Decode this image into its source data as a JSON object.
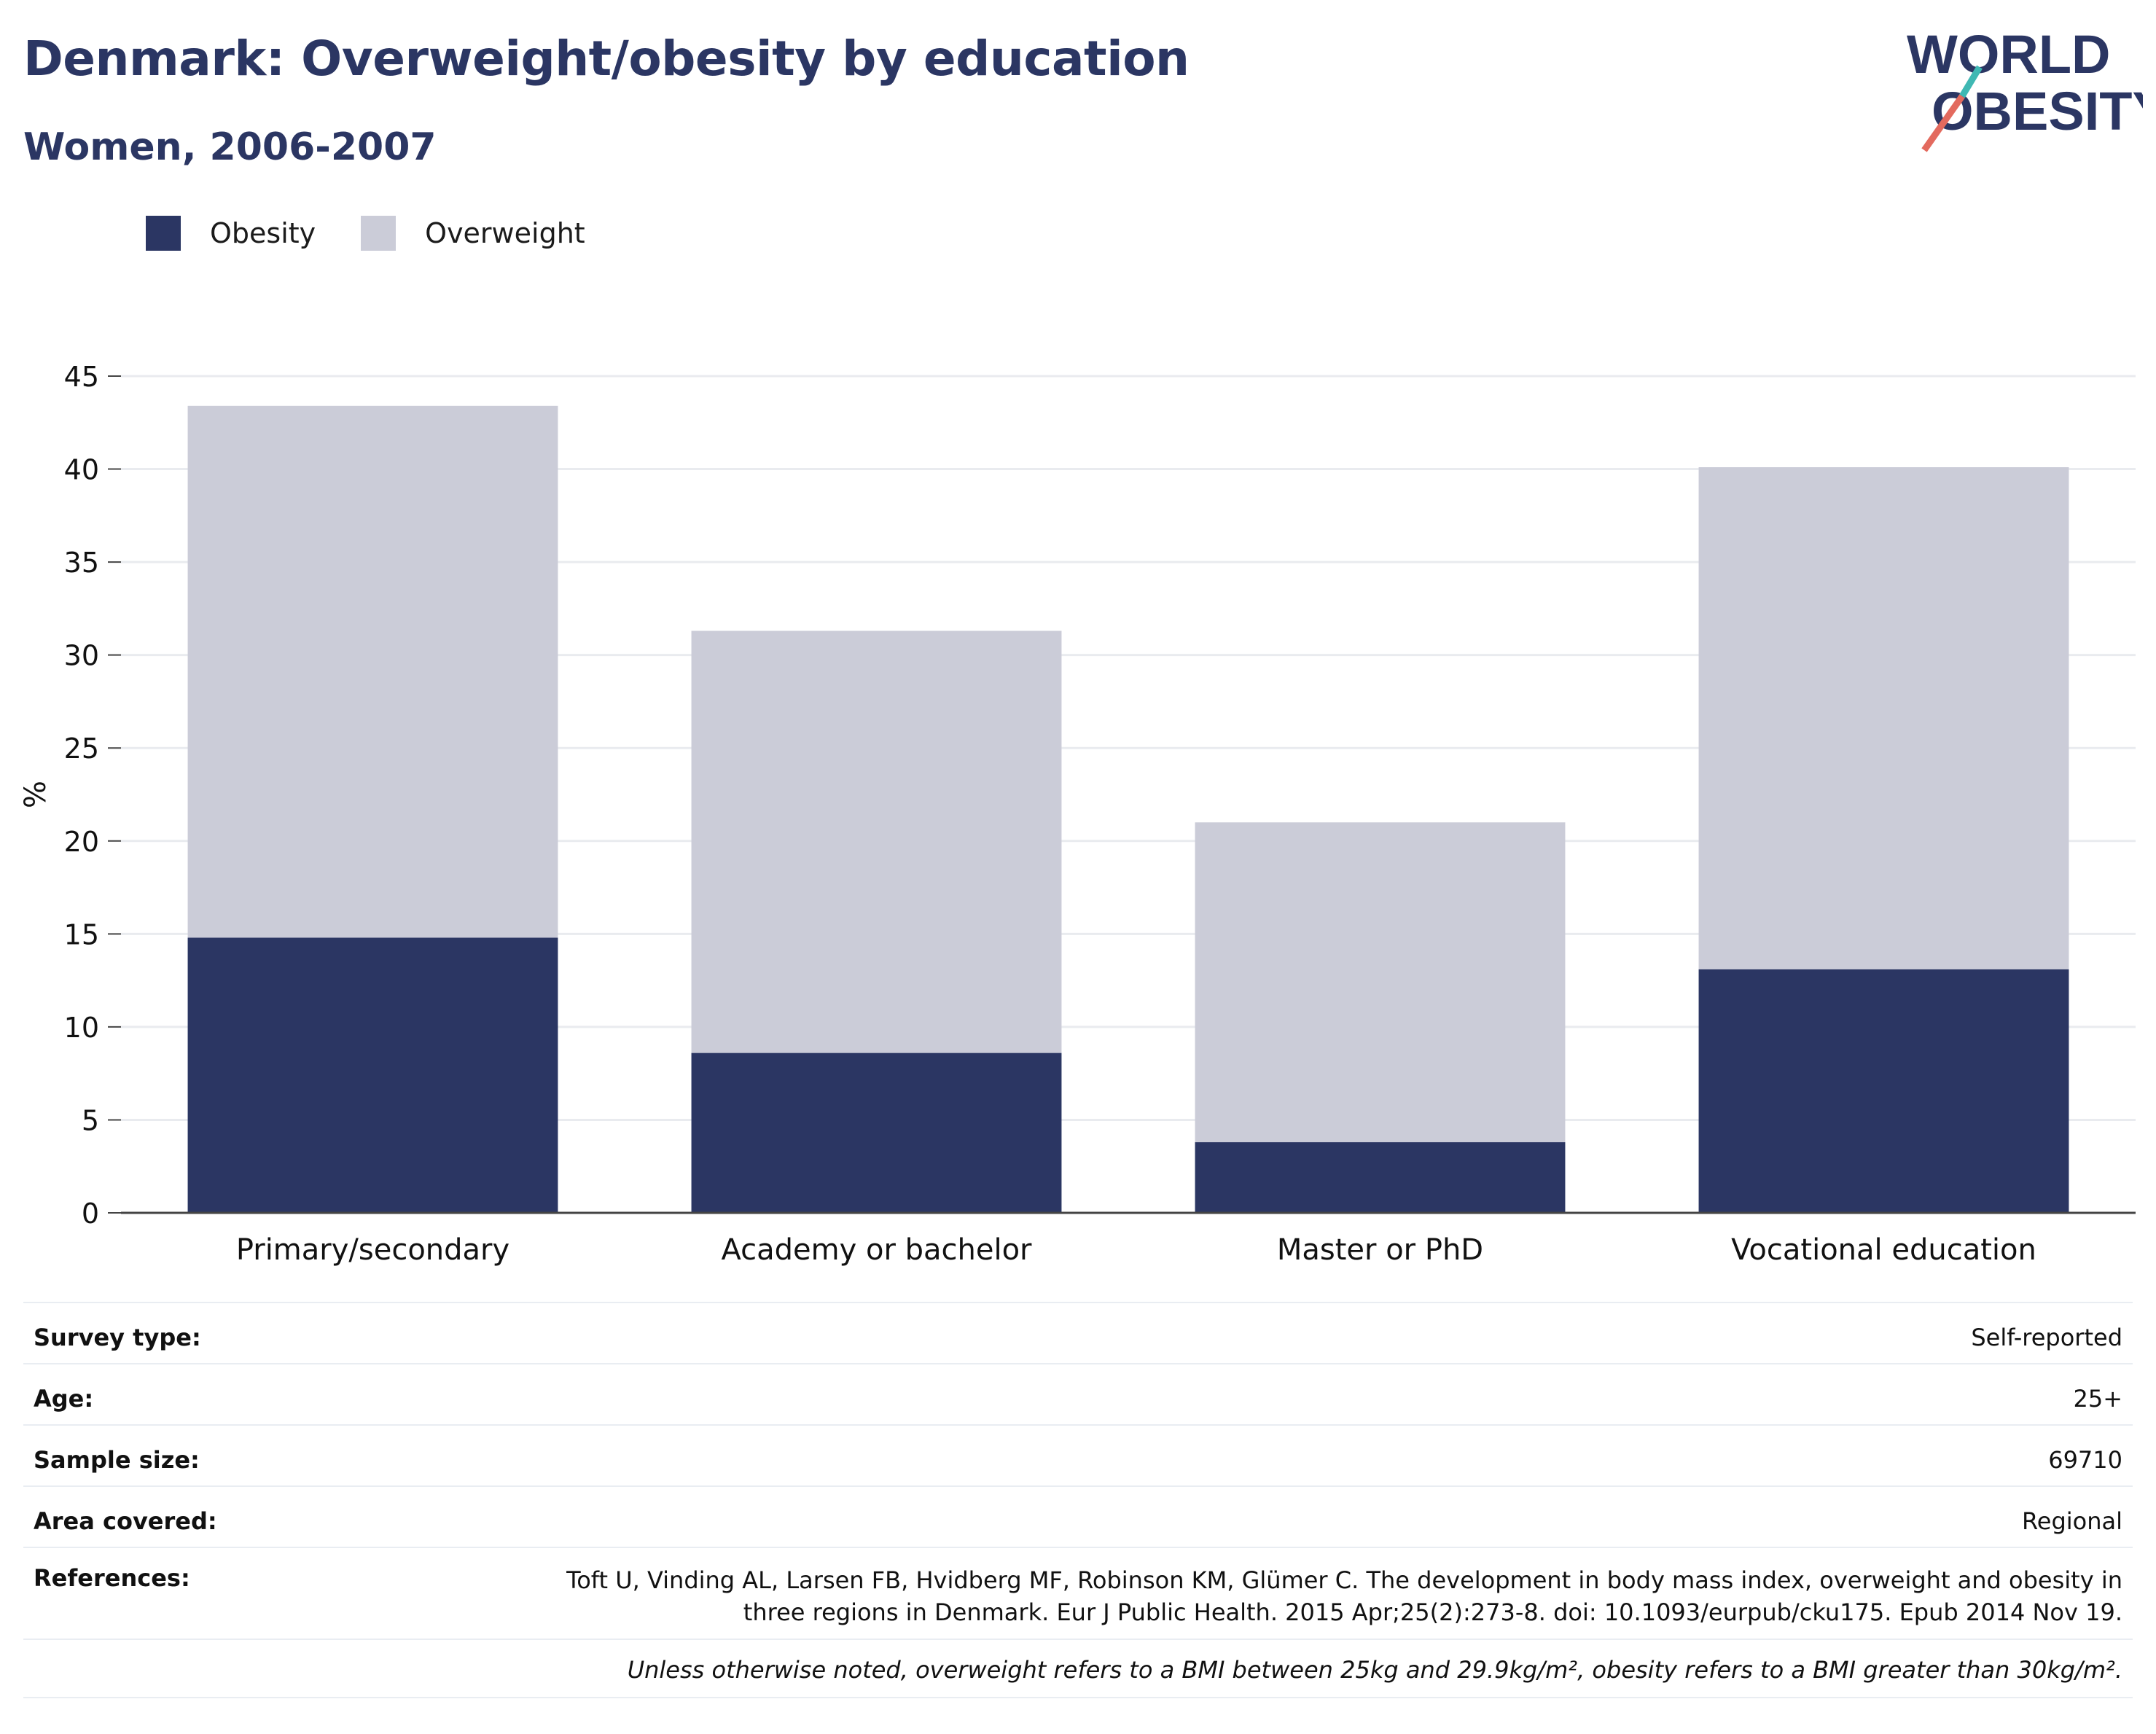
{
  "header": {
    "title": "Denmark: Overweight/obesity by education",
    "subtitle": "Women, 2006-2007"
  },
  "logo": {
    "line1": "WORLD",
    "line2": "OBESITY",
    "colors": {
      "navy": "#2b3663",
      "teal": "#3fb8b3",
      "coral": "#e36a5e"
    }
  },
  "chart_data": {
    "type": "bar",
    "stacked": true,
    "categories": [
      "Primary/secondary",
      "Academy or bachelor",
      "Master or PhD",
      "Vocational education"
    ],
    "series": [
      {
        "name": "Obesity",
        "color": "#2b3663",
        "values": [
          14.8,
          8.6,
          3.8,
          13.1
        ]
      },
      {
        "name": "Overweight",
        "color": "#cbccd8",
        "values": [
          28.6,
          22.7,
          17.2,
          27.0
        ]
      }
    ],
    "ylabel": "%",
    "ylim": [
      0,
      45
    ],
    "yticks": [
      "0",
      "5",
      "10",
      "15",
      "20",
      "25",
      "30",
      "35",
      "40",
      "45"
    ],
    "grid": true,
    "legend_position": "top-left"
  },
  "info": {
    "rows": [
      {
        "label": "Survey type:",
        "value": "Self-reported"
      },
      {
        "label": "Age:",
        "value": "25+"
      },
      {
        "label": "Sample size:",
        "value": "69710"
      },
      {
        "label": "Area covered:",
        "value": "Regional"
      }
    ],
    "references_label": "References:",
    "references_value": "Toft U, Vinding AL, Larsen FB, Hvidberg MF, Robinson KM, Glümer C. The development in body mass index, overweight and obesity in three regions in Denmark. Eur J Public Health. 2015 Apr;25(2):273-8. doi: 10.1093/eurpub/cku175. Epub 2014 Nov 19.",
    "note": "Unless otherwise noted, overweight refers to a BMI between 25kg and 29.9kg/m², obesity refers to a BMI greater than 30kg/m²."
  }
}
